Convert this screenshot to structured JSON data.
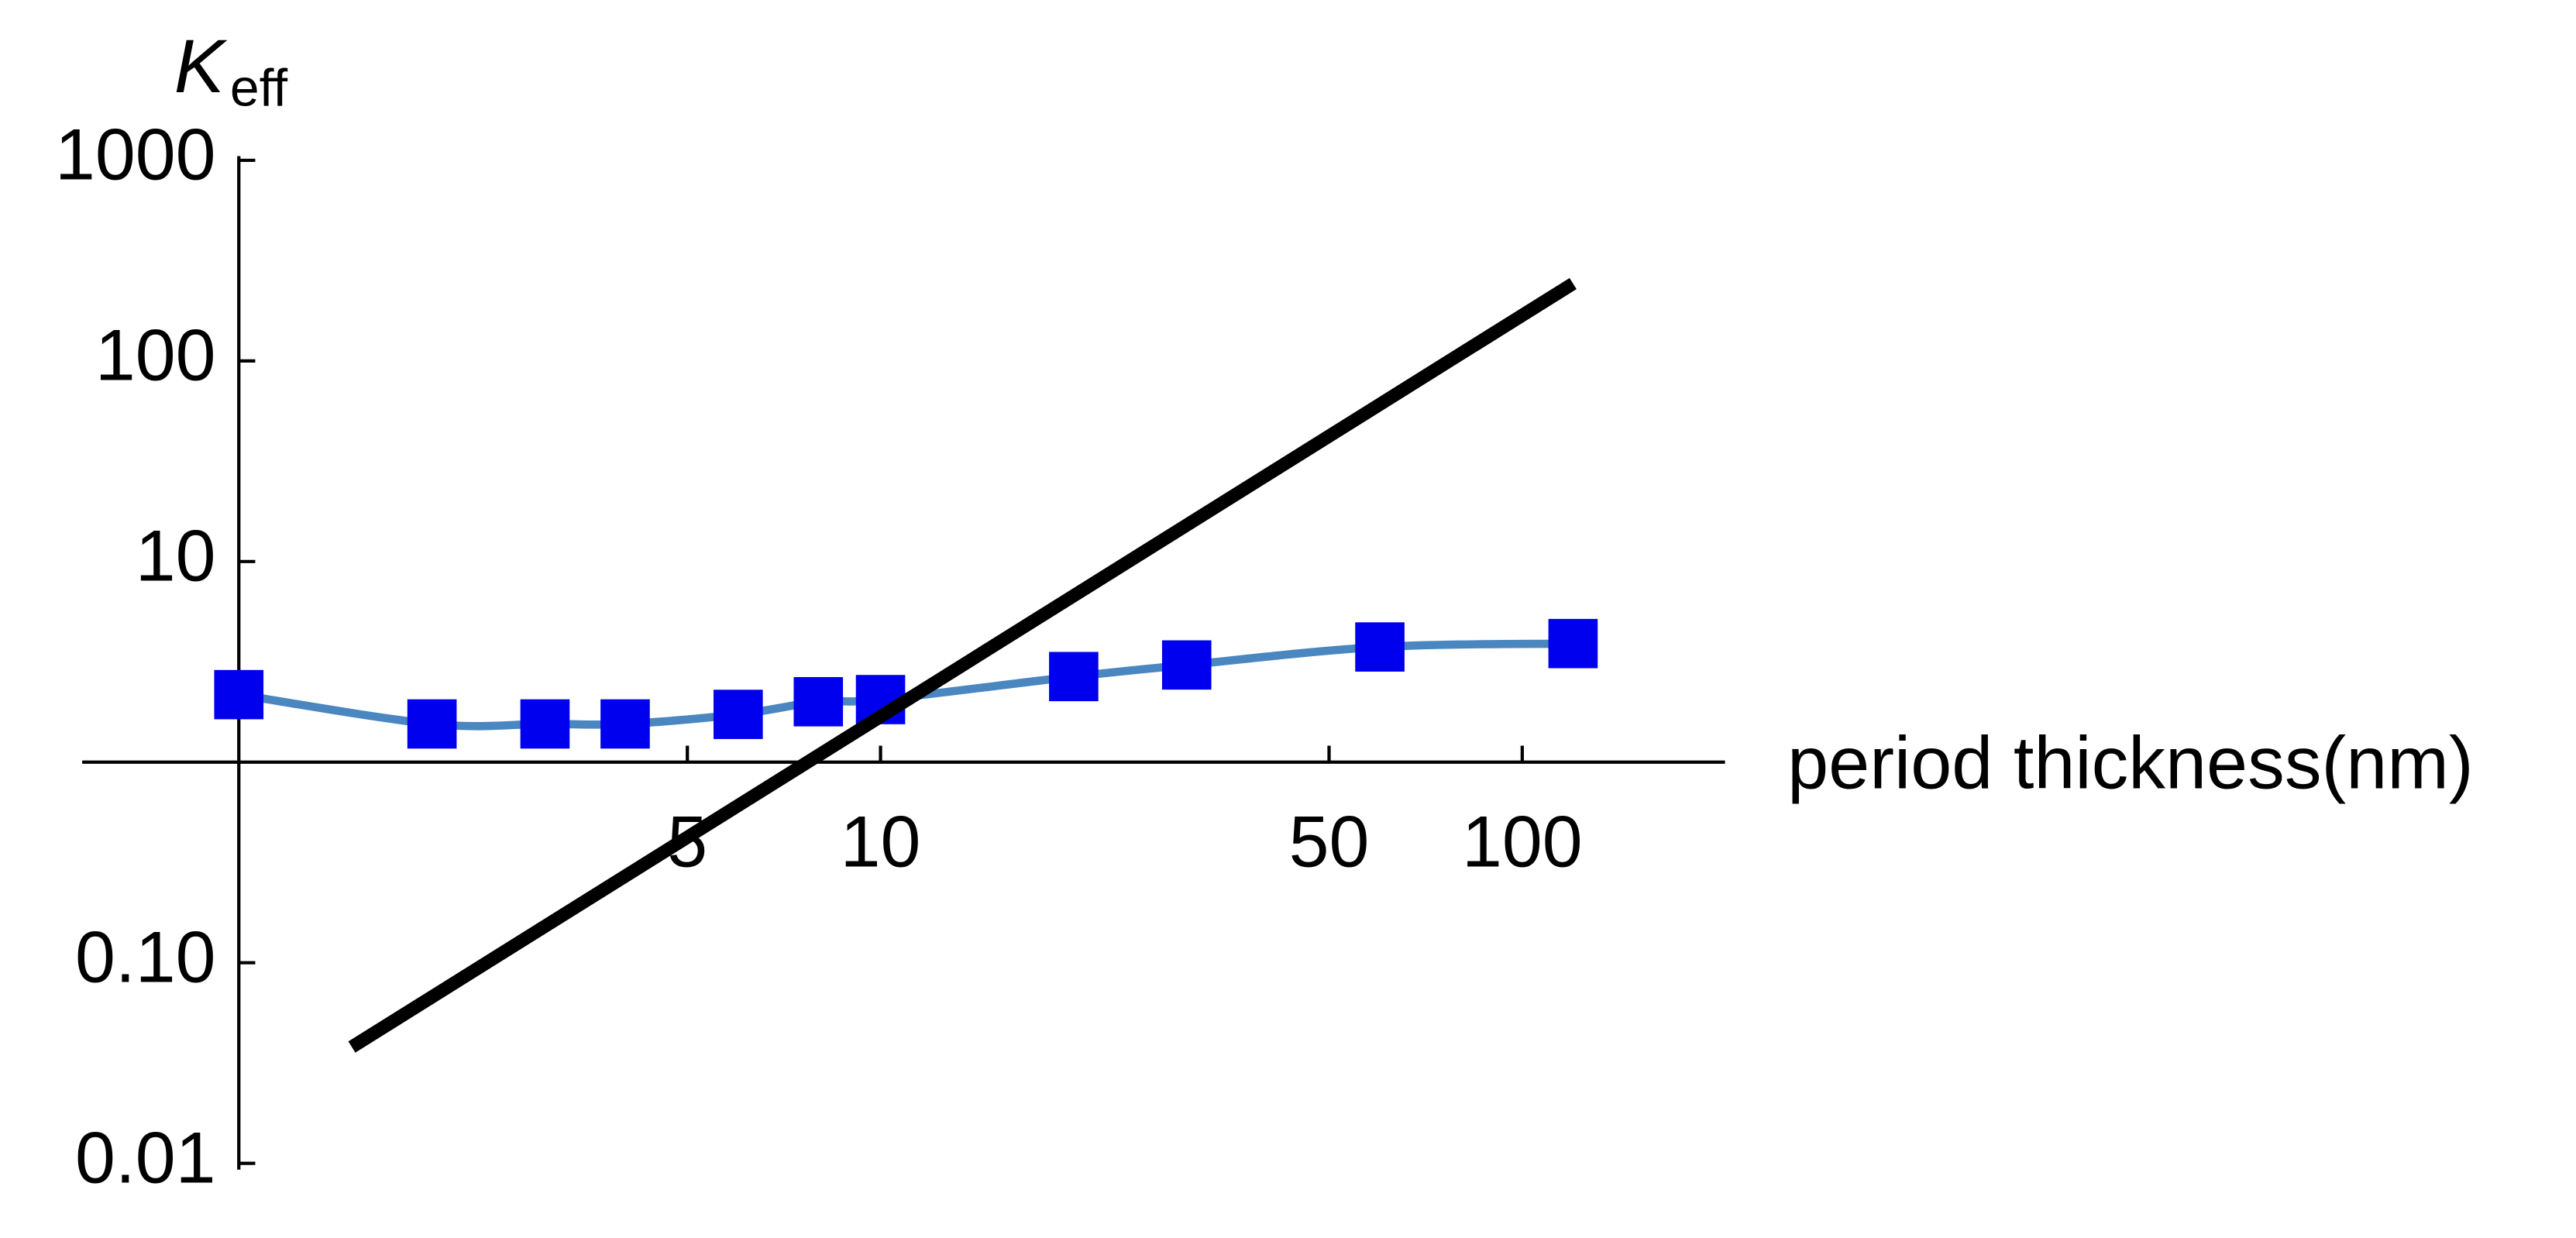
{
  "chart_data": {
    "type": "line",
    "ylabel": {
      "symbol": "K",
      "subscript": "eff"
    },
    "xlabel": "period thickness(nm)",
    "xscale": "log",
    "yscale": "log",
    "xlim": [
      0.57,
      207
    ],
    "ylim": [
      0.0093,
      1050
    ],
    "xticks": [
      5,
      10,
      50,
      100
    ],
    "yticks": [
      {
        "value": 0.01,
        "label": "0.01"
      },
      {
        "value": 0.1,
        "label": "0.10"
      },
      10,
      100,
      1000
    ],
    "series": [
      {
        "color": "#4a86c0",
        "marker": "square",
        "marker_color": "#0000ee",
        "x": [
          1,
          2,
          3,
          4,
          6,
          8,
          10,
          20,
          30,
          60,
          120
        ],
        "values": [
          2.17,
          1.55,
          1.55,
          1.55,
          1.73,
          2.0,
          2.05,
          2.67,
          3.05,
          3.75,
          3.9
        ]
      },
      {
        "color": "#000000",
        "x": [
          1.5,
          120
        ],
        "values": [
          0.038,
          243
        ]
      }
    ]
  }
}
